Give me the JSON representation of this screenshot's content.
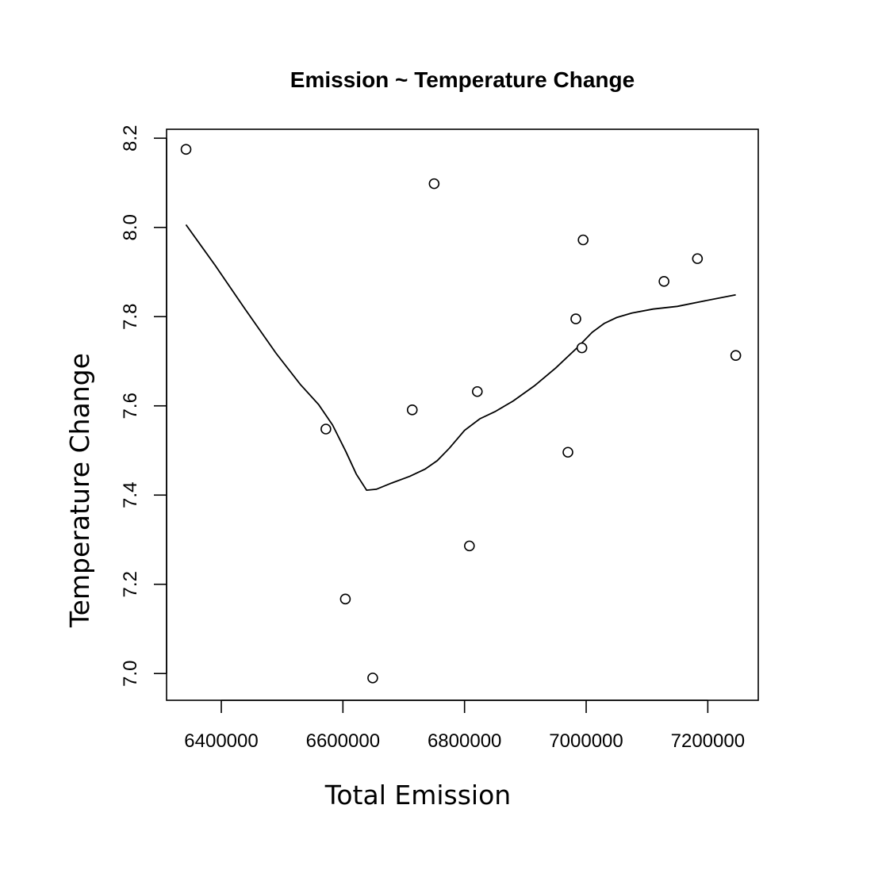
{
  "chart_data": {
    "type": "scatter",
    "title": "Emission ~ Temperature Change",
    "xlabel": "Total Emission",
    "ylabel": "Temperature Change",
    "xlim": [
      6310000,
      7283000
    ],
    "ylim": [
      6.94,
      8.22
    ],
    "x_ticks": [
      6400000,
      6600000,
      6800000,
      7000000,
      7200000
    ],
    "x_tick_labels": [
      "6400000",
      "6600000",
      "6800000",
      "7000000",
      "7200000"
    ],
    "y_ticks": [
      7.0,
      7.2,
      7.4,
      7.6,
      7.8,
      8.0,
      8.2
    ],
    "y_tick_labels": [
      "7.0",
      "7.2",
      "7.4",
      "7.6",
      "7.8",
      "8.0",
      "8.2"
    ],
    "grid": false,
    "legend": "none",
    "points": [
      {
        "x": 6342000,
        "y": 8.175
      },
      {
        "x": 6750000,
        "y": 8.098
      },
      {
        "x": 6995000,
        "y": 7.972
      },
      {
        "x": 7183000,
        "y": 7.93
      },
      {
        "x": 7128000,
        "y": 7.879
      },
      {
        "x": 6983000,
        "y": 7.795
      },
      {
        "x": 6993000,
        "y": 7.73
      },
      {
        "x": 7246000,
        "y": 7.713
      },
      {
        "x": 6821000,
        "y": 7.632
      },
      {
        "x": 6714000,
        "y": 7.591
      },
      {
        "x": 6572000,
        "y": 7.548
      },
      {
        "x": 6970000,
        "y": 7.496
      },
      {
        "x": 6808000,
        "y": 7.286
      },
      {
        "x": 6604000,
        "y": 7.167
      },
      {
        "x": 6649000,
        "y": 6.99
      }
    ],
    "smooth_line": [
      {
        "x": 6342000,
        "y": 8.006
      },
      {
        "x": 6390000,
        "y": 7.915
      },
      {
        "x": 6440000,
        "y": 7.815
      },
      {
        "x": 6490000,
        "y": 7.718
      },
      {
        "x": 6530000,
        "y": 7.648
      },
      {
        "x": 6560000,
        "y": 7.603
      },
      {
        "x": 6583000,
        "y": 7.557
      },
      {
        "x": 6605000,
        "y": 7.497
      },
      {
        "x": 6622000,
        "y": 7.447
      },
      {
        "x": 6639000,
        "y": 7.411
      },
      {
        "x": 6655000,
        "y": 7.413
      },
      {
        "x": 6680000,
        "y": 7.427
      },
      {
        "x": 6710000,
        "y": 7.442
      },
      {
        "x": 6735000,
        "y": 7.458
      },
      {
        "x": 6755000,
        "y": 7.477
      },
      {
        "x": 6775000,
        "y": 7.505
      },
      {
        "x": 6800000,
        "y": 7.545
      },
      {
        "x": 6825000,
        "y": 7.571
      },
      {
        "x": 6850000,
        "y": 7.587
      },
      {
        "x": 6880000,
        "y": 7.611
      },
      {
        "x": 6915000,
        "y": 7.645
      },
      {
        "x": 6950000,
        "y": 7.685
      },
      {
        "x": 6985000,
        "y": 7.73
      },
      {
        "x": 7010000,
        "y": 7.765
      },
      {
        "x": 7030000,
        "y": 7.785
      },
      {
        "x": 7050000,
        "y": 7.798
      },
      {
        "x": 7075000,
        "y": 7.808
      },
      {
        "x": 7110000,
        "y": 7.817
      },
      {
        "x": 7150000,
        "y": 7.823
      },
      {
        "x": 7190000,
        "y": 7.834
      },
      {
        "x": 7246000,
        "y": 7.849
      }
    ]
  }
}
